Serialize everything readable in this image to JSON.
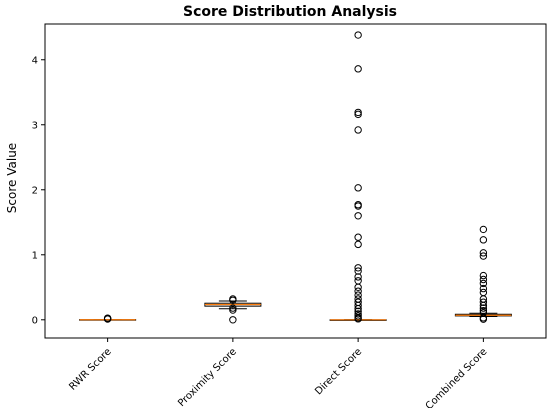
{
  "chart_data": {
    "type": "boxplot",
    "title": "Score Distribution Analysis",
    "xlabel": "",
    "ylabel": "Score Value",
    "ylim": [
      -0.28,
      4.55
    ],
    "yticks": [
      0,
      1,
      2,
      3,
      4
    ],
    "grid": false,
    "legend": "none",
    "colors": {
      "box": "#000000",
      "median": "#ff7f0e",
      "flier": "#000000"
    },
    "categories": [
      "RWR Score",
      "Proximity Score",
      "Direct Score",
      "Combined Score"
    ],
    "boxes": [
      {
        "name": "RWR Score",
        "whisker_low": 0.0,
        "q1": 0.0,
        "median": 0.001,
        "q3": 0.003,
        "whisker_high": 0.005,
        "fliers": [
          0.012,
          0.016,
          0.02,
          0.025
        ]
      },
      {
        "name": "Proximity Score",
        "whisker_low": 0.17,
        "q1": 0.21,
        "median": 0.235,
        "q3": 0.255,
        "whisker_high": 0.29,
        "fliers": [
          0.0,
          0.15,
          0.18,
          0.3,
          0.32
        ]
      },
      {
        "name": "Direct Score",
        "whisker_low": 0.0,
        "q1": 0.0,
        "median": 0.0,
        "q3": 0.0,
        "whisker_high": 0.0,
        "fliers": [
          4.38,
          3.86,
          3.19,
          3.16,
          2.92,
          2.03,
          1.77,
          1.75,
          1.6,
          1.27,
          1.16,
          0.8,
          0.75,
          0.66,
          0.6,
          0.5,
          0.44,
          0.38,
          0.32,
          0.27,
          0.22,
          0.17,
          0.13,
          0.09,
          0.06,
          0.03,
          0.015
        ]
      },
      {
        "name": "Combined Score",
        "whisker_low": 0.05,
        "q1": 0.06,
        "median": 0.07,
        "q3": 0.085,
        "whisker_high": 0.1,
        "fliers": [
          1.39,
          1.23,
          1.03,
          0.98,
          0.68,
          0.62,
          0.56,
          0.48,
          0.42,
          0.32,
          0.27,
          0.22,
          0.18,
          0.14,
          0.11,
          0.03,
          0.01
        ]
      }
    ]
  }
}
